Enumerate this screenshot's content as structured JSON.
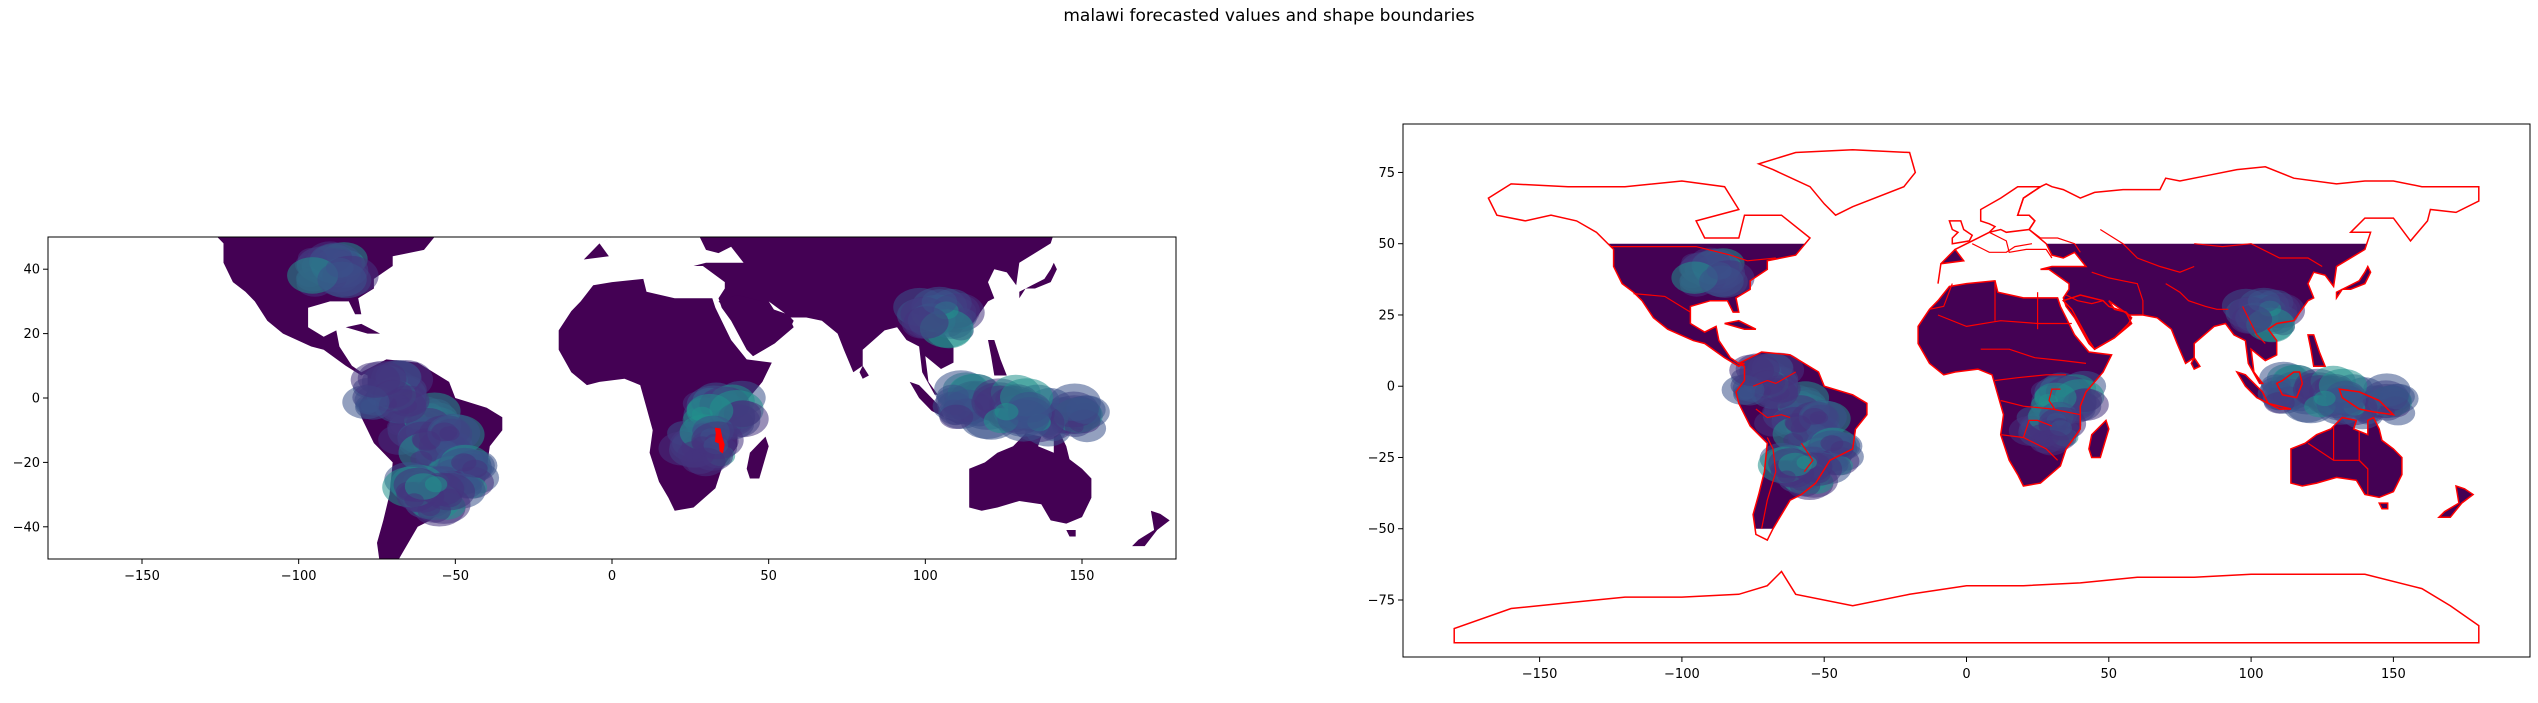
{
  "figure": {
    "title": "malawi forecasted values and shape boundaries"
  },
  "chart_data": [
    {
      "type": "heatmap",
      "panel": "left",
      "title": "",
      "xlabel": "",
      "ylabel": "",
      "xlim": [
        -180,
        180
      ],
      "ylim": [
        -50,
        50
      ],
      "xticks": [
        -150,
        -100,
        -50,
        0,
        50,
        100,
        150
      ],
      "yticks": [
        -40,
        -20,
        0,
        20,
        40
      ],
      "grid": false,
      "colormap": "viridis",
      "background_value_color": "#440154",
      "highlight_region": {
        "name": "Malawi",
        "color": "#ff0000"
      },
      "legend": "none"
    },
    {
      "type": "heatmap",
      "panel": "right",
      "title": "",
      "xlabel": "",
      "ylabel": "",
      "xlim": [
        -198,
        198
      ],
      "ylim": [
        -95,
        92
      ],
      "xticks": [
        -150,
        -100,
        -50,
        0,
        50,
        100,
        150
      ],
      "yticks": [
        -75,
        -50,
        -25,
        0,
        25,
        50,
        75
      ],
      "grid": false,
      "colormap": "viridis",
      "raster_lat_range": [
        -50,
        50
      ],
      "boundary_color": "#ff0000",
      "legend": "none"
    }
  ],
  "colors": {
    "low": "#440154",
    "mid_low": "#3b528b",
    "mid": "#21918c",
    "high": "#5ec962",
    "boundary": "#ff0000"
  }
}
